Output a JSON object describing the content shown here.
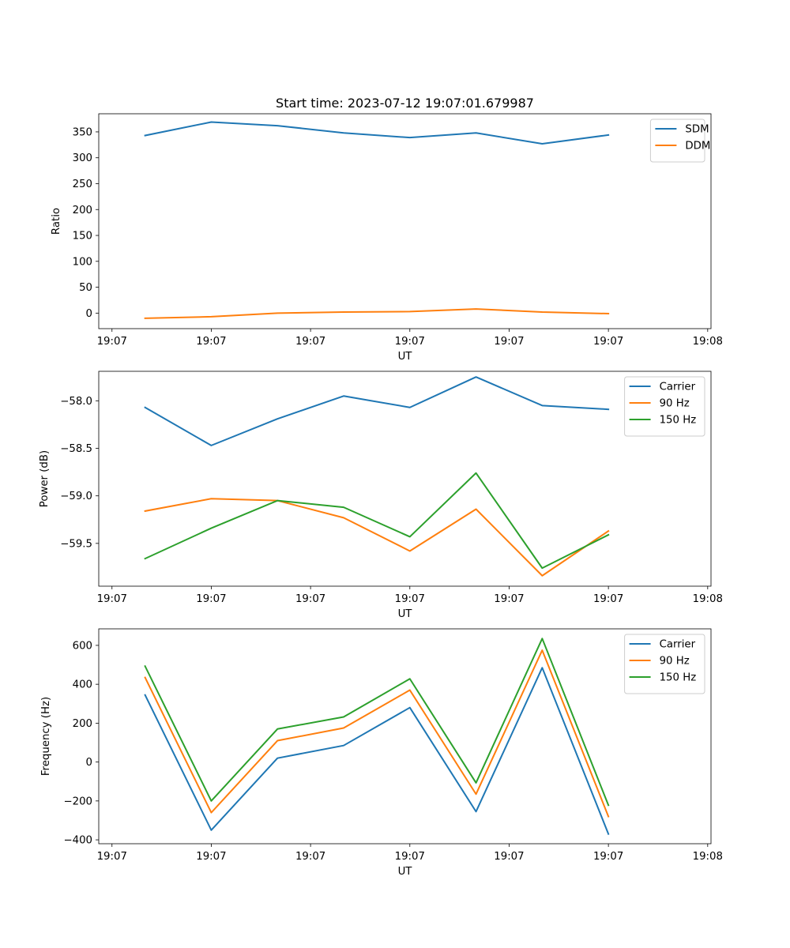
{
  "figure_title": "Start time: 2023-07-12 19:07:01.679987",
  "chart_data": [
    {
      "type": "line",
      "title": "Start time: 2023-07-12 19:07:01.679987",
      "xlabel": "UT",
      "ylabel": "Ratio",
      "x_tick_labels": [
        "19:07",
        "19:07",
        "19:07",
        "19:07",
        "19:07",
        "19:07",
        "19:08"
      ],
      "xlim": [
        -0.2,
        9.05
      ],
      "ylim": [
        -30,
        385
      ],
      "y_ticks": [
        0,
        50,
        100,
        150,
        200,
        250,
        300,
        350
      ],
      "y_tick_labels": [
        "0",
        "50",
        "100",
        "150",
        "200",
        "250",
        "300",
        "350"
      ],
      "x": [
        0.5,
        1.5,
        2.5,
        3.5,
        4.5,
        5.5,
        6.5,
        7.5
      ],
      "series": [
        {
          "name": "SDM",
          "color": "#1f77b4",
          "values": [
            343,
            369,
            362,
            348,
            339,
            348,
            327,
            344
          ]
        },
        {
          "name": "DDM",
          "color": "#ff7f0e",
          "values": [
            -10,
            -7,
            0,
            2,
            3,
            8,
            2,
            -1
          ]
        }
      ],
      "legend": "top-right"
    },
    {
      "type": "line",
      "title": "",
      "xlabel": "UT",
      "ylabel": "Power (dB)",
      "x_tick_labels": [
        "19:07",
        "19:07",
        "19:07",
        "19:07",
        "19:07",
        "19:07",
        "19:08"
      ],
      "xlim": [
        -0.2,
        9.05
      ],
      "ylim": [
        -59.95,
        -57.69
      ],
      "y_ticks": [
        -59.5,
        -59.0,
        -58.5,
        -58.0
      ],
      "y_tick_labels": [
        "−59.5",
        "−59.0",
        "−58.5",
        "−58.0"
      ],
      "x": [
        0.5,
        1.5,
        2.5,
        3.5,
        4.5,
        5.5,
        6.5,
        7.5
      ],
      "series": [
        {
          "name": "Carrier",
          "color": "#1f77b4",
          "values": [
            -58.07,
            -58.47,
            -58.19,
            -57.95,
            -58.07,
            -57.75,
            -58.05,
            -58.09
          ]
        },
        {
          "name": "90 Hz",
          "color": "#ff7f0e",
          "values": [
            -59.16,
            -59.03,
            -59.05,
            -59.23,
            -59.58,
            -59.14,
            -59.84,
            -59.37
          ]
        },
        {
          "name": "150 Hz",
          "color": "#2ca02c",
          "values": [
            -59.66,
            -59.34,
            -59.05,
            -59.12,
            -59.43,
            -58.76,
            -59.76,
            -59.41
          ]
        }
      ],
      "legend": "top-right"
    },
    {
      "type": "line",
      "title": "",
      "xlabel": "UT",
      "ylabel": "Frequency (Hz)",
      "x_tick_labels": [
        "19:07",
        "19:07",
        "19:07",
        "19:07",
        "19:07",
        "19:07",
        "19:08"
      ],
      "xlim": [
        -0.2,
        9.05
      ],
      "ylim": [
        -420,
        685
      ],
      "y_ticks": [
        -400,
        -200,
        0,
        200,
        400,
        600
      ],
      "y_tick_labels": [
        "−400",
        "−200",
        "0",
        "200",
        "400",
        "600"
      ],
      "x": [
        0.5,
        1.5,
        2.5,
        3.5,
        4.5,
        5.5,
        6.5,
        7.5
      ],
      "series": [
        {
          "name": "Carrier",
          "color": "#1f77b4",
          "values": [
            345,
            -350,
            20,
            85,
            280,
            -255,
            485,
            -370
          ]
        },
        {
          "name": "90 Hz",
          "color": "#ff7f0e",
          "values": [
            435,
            -260,
            110,
            175,
            370,
            -165,
            575,
            -280
          ]
        },
        {
          "name": "150 Hz",
          "color": "#2ca02c",
          "values": [
            493,
            -200,
            170,
            232,
            428,
            -107,
            635,
            -222
          ]
        }
      ],
      "legend": "top-right"
    }
  ]
}
